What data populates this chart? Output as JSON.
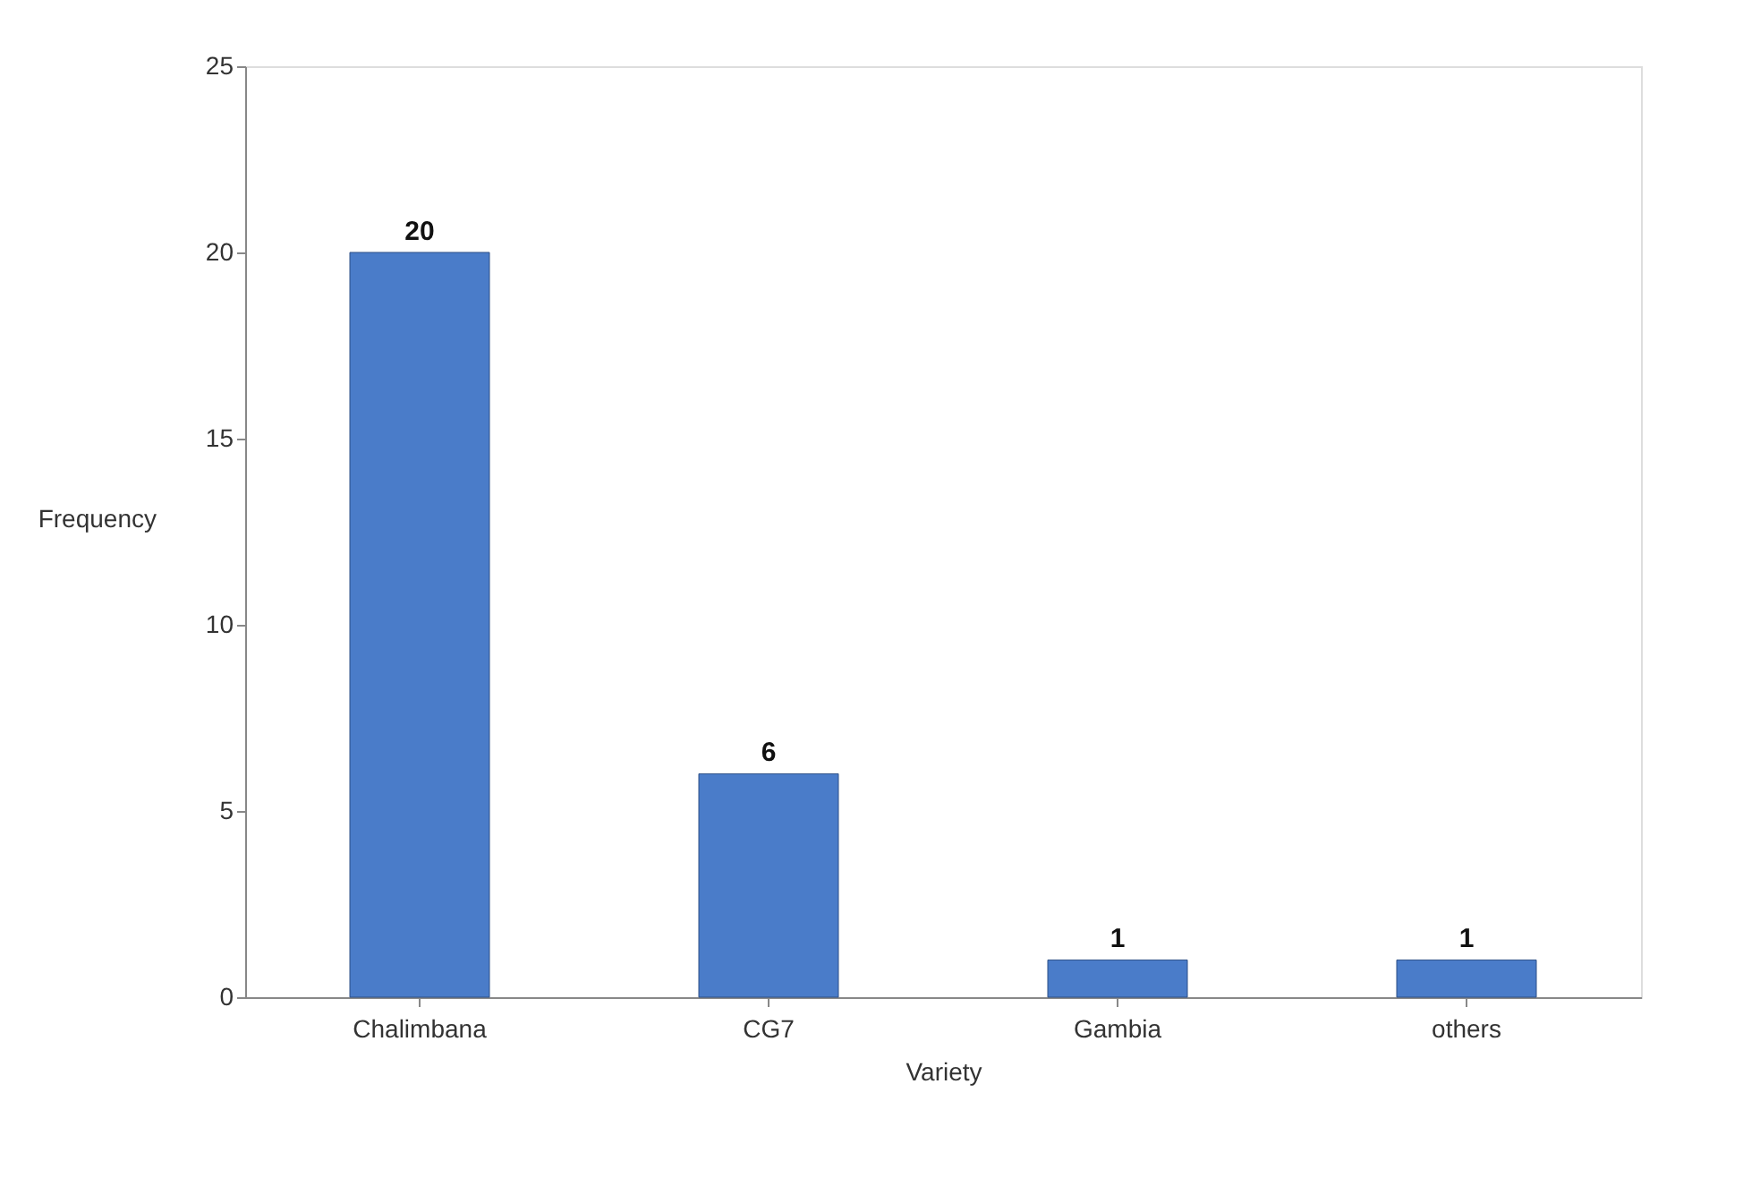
{
  "chart_data": {
    "type": "bar",
    "xlabel": "Variety",
    "ylabel": "Frequency",
    "categories": [
      "Chalimbana",
      "CG7",
      "Gambia",
      "others"
    ],
    "values": [
      20,
      6,
      1,
      1
    ],
    "color": "#4a7cc9",
    "ylim": [
      0,
      25
    ],
    "yticks": [
      0,
      5,
      10,
      15,
      20,
      25
    ],
    "grid": false,
    "data_labels": true
  }
}
